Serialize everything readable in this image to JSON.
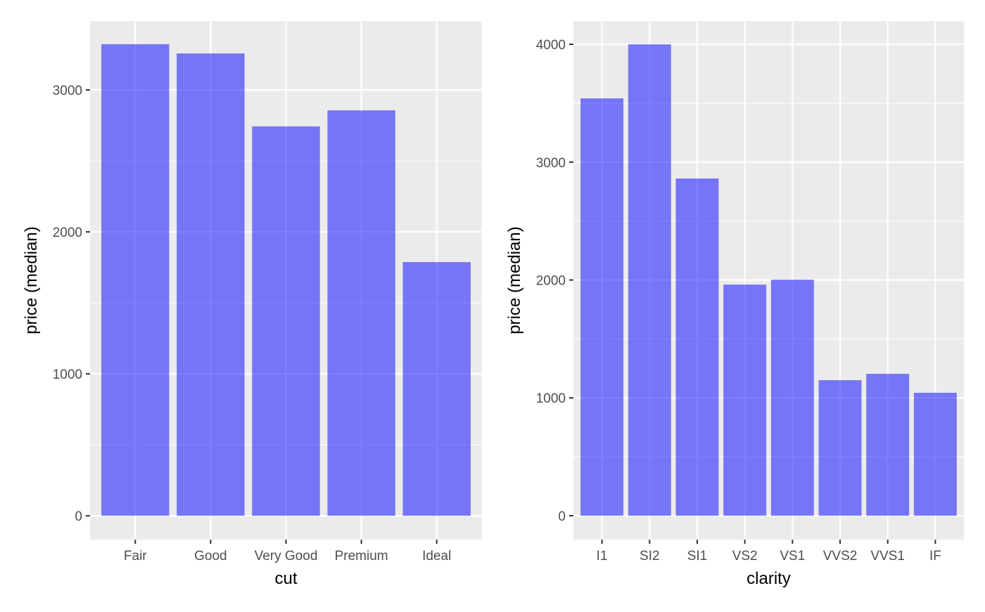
{
  "chart_data": [
    {
      "type": "bar",
      "categories": [
        "Fair",
        "Good",
        "Very Good",
        "Premium",
        "Ideal"
      ],
      "values": [
        3322,
        3257,
        2743,
        2856,
        1787
      ],
      "xlabel": "cut",
      "ylabel": "price (median)",
      "yticks": [
        0,
        1000,
        2000,
        3000
      ],
      "ytick_labels": [
        "0",
        "1000",
        "2000",
        "3000"
      ],
      "ylim": [
        -168,
        3485
      ],
      "grid": true,
      "bar_color": "#7676F5",
      "panel_color": "#EBEBEB"
    },
    {
      "type": "bar",
      "categories": [
        "I1",
        "SI2",
        "SI1",
        "VS2",
        "VS1",
        "VVS2",
        "VVS1",
        "IF"
      ],
      "values": [
        3541,
        4000,
        2861,
        1961,
        2003,
        1150,
        1204,
        1043
      ],
      "xlabel": "clarity",
      "ylabel": "price (median)",
      "yticks": [
        0,
        1000,
        2000,
        3000,
        4000
      ],
      "ytick_labels": [
        "0",
        "1000",
        "2000",
        "3000",
        "4000"
      ],
      "ylim": [
        -203,
        4197
      ],
      "grid": true,
      "bar_color": "#7676F5",
      "panel_color": "#EBEBEB"
    }
  ]
}
